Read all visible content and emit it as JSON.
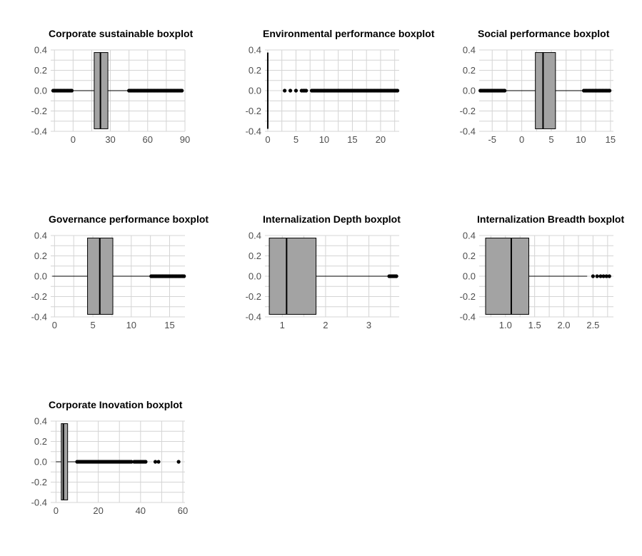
{
  "colors": {
    "box_fill": "#a3a3a3",
    "grid": "#d4d4d4",
    "tick_text": "#4d4d4d",
    "ink": "#000000",
    "background": "#ffffff"
  },
  "chart_data": [
    {
      "type": "boxplot",
      "title": "Corporate sustainable boxplot",
      "xlim": [
        -18,
        90
      ],
      "x_ticks": [
        0,
        30,
        60,
        90
      ],
      "ylim": [
        -0.4,
        0.4
      ],
      "y_ticks": [
        -0.4,
        -0.2,
        0.0,
        0.2,
        0.4
      ],
      "y_tick_labels": [
        "-0.4",
        "-0.2",
        "0.0",
        "0.2",
        "0.4"
      ],
      "grid": true,
      "stats": {
        "whisker_low": -16,
        "q1": 17,
        "median": 22,
        "q3": 28,
        "whisker_high": 45
      },
      "outlier_ranges": [
        [
          -16,
          -1
        ],
        [
          45,
          88
        ]
      ],
      "outliers": []
    },
    {
      "type": "boxplot",
      "title": "Environmental performance boxplot",
      "xlim": [
        -0.5,
        23.3
      ],
      "x_ticks": [
        0,
        5,
        10,
        15,
        20
      ],
      "ylim": [
        -0.4,
        0.4
      ],
      "y_ticks": [
        -0.4,
        -0.2,
        0.0,
        0.2,
        0.4
      ],
      "y_tick_labels": [
        "-0.4",
        "-0.2",
        "0.0",
        "0.2",
        "0.4"
      ],
      "grid": true,
      "stats": {
        "whisker_low": 0,
        "q1": 0,
        "median": 0,
        "q3": 0,
        "whisker_high": 0
      },
      "outlier_ranges": [
        [
          6.3,
          7.0
        ],
        [
          7.8,
          23.0
        ]
      ],
      "outliers": [
        3.0,
        4.0,
        5.0,
        6.0
      ]
    },
    {
      "type": "boxplot",
      "title": "Social performance boxplot",
      "xlim": [
        -7.2,
        15.5
      ],
      "x_ticks": [
        -5,
        0,
        5,
        10,
        15
      ],
      "ylim": [
        -0.4,
        0.4
      ],
      "y_ticks": [
        -0.4,
        -0.2,
        0.0,
        0.2,
        0.4
      ],
      "y_tick_labels": [
        "-0.4",
        "-0.2",
        "0.0",
        "0.2",
        "0.4"
      ],
      "grid": true,
      "stats": {
        "whisker_low": -7,
        "q1": 2.3,
        "median": 3.6,
        "q3": 5.7,
        "whisker_high": 10.5
      },
      "outlier_ranges": [
        [
          -7.0,
          -2.8
        ],
        [
          10.5,
          15.0
        ]
      ],
      "outliers": []
    },
    {
      "type": "boxplot",
      "title": "Governance performance boxplot",
      "xlim": [
        -0.5,
        17.0
      ],
      "x_ticks": [
        0,
        5,
        10,
        15
      ],
      "ylim": [
        -0.4,
        0.4
      ],
      "y_ticks": [
        -0.4,
        -0.2,
        0.0,
        0.2,
        0.4
      ],
      "y_tick_labels": [
        "-0.4",
        "-0.2",
        "0.0",
        "0.2",
        "0.4"
      ],
      "grid": true,
      "stats": {
        "whisker_low": -0.3,
        "q1": 4.3,
        "median": 5.9,
        "q3": 7.6,
        "whisker_high": 12.6
      },
      "outlier_ranges": [
        [
          12.6,
          17.0
        ]
      ],
      "outliers": []
    },
    {
      "type": "boxplot",
      "title": "Internalization Depth boxplot",
      "xlim": [
        0.6,
        3.7
      ],
      "x_ticks": [
        1,
        2,
        3
      ],
      "ylim": [
        -0.4,
        0.4
      ],
      "y_ticks": [
        -0.4,
        -0.2,
        0.0,
        0.2,
        0.4
      ],
      "y_tick_labels": [
        "-0.4",
        "-0.2",
        "0.0",
        "0.2",
        "0.4"
      ],
      "grid": true,
      "stats": {
        "whisker_low": 0.7,
        "q1": 0.7,
        "median": 1.1,
        "q3": 1.78,
        "whisker_high": 3.45
      },
      "outlier_ranges": [
        [
          3.47,
          3.65
        ]
      ],
      "outliers": []
    },
    {
      "type": "boxplot",
      "title": "Internalization Breadth boxplot",
      "xlim": [
        0.55,
        2.85
      ],
      "x_ticks": [
        1.0,
        1.5,
        2.0,
        2.5
      ],
      "x_tick_labels": [
        "1.0",
        "1.5",
        "2.0",
        "2.5"
      ],
      "ylim": [
        -0.4,
        0.4
      ],
      "y_ticks": [
        -0.4,
        -0.2,
        0.0,
        0.2,
        0.4
      ],
      "y_tick_labels": [
        "-0.4",
        "-0.2",
        "0.0",
        "0.2",
        "0.4"
      ],
      "grid": true,
      "stats": {
        "whisker_low": 0.66,
        "q1": 0.66,
        "median": 1.1,
        "q3": 1.4,
        "whisker_high": 2.4
      },
      "outlier_ranges": [],
      "outliers": [
        2.5,
        2.57,
        2.63,
        2.68,
        2.73,
        2.78
      ]
    },
    {
      "type": "boxplot",
      "title": "Corporate Inovation boxplot",
      "xlim": [
        -2.5,
        61
      ],
      "x_ticks": [
        0,
        20,
        40,
        60
      ],
      "ylim": [
        -0.4,
        0.4
      ],
      "y_ticks": [
        -0.4,
        -0.2,
        0.0,
        0.2,
        0.4
      ],
      "y_tick_labels": [
        "-0.4",
        "-0.2",
        "0.0",
        "0.2",
        "0.4"
      ],
      "grid": true,
      "stats": {
        "whisker_low": 0,
        "q1": 2.5,
        "median": 3.5,
        "q3": 5.5,
        "whisker_high": 10
      },
      "outlier_ranges": [
        [
          10,
          36
        ],
        [
          37,
          43
        ]
      ],
      "outliers": [
        47,
        48.5,
        58
      ]
    }
  ]
}
